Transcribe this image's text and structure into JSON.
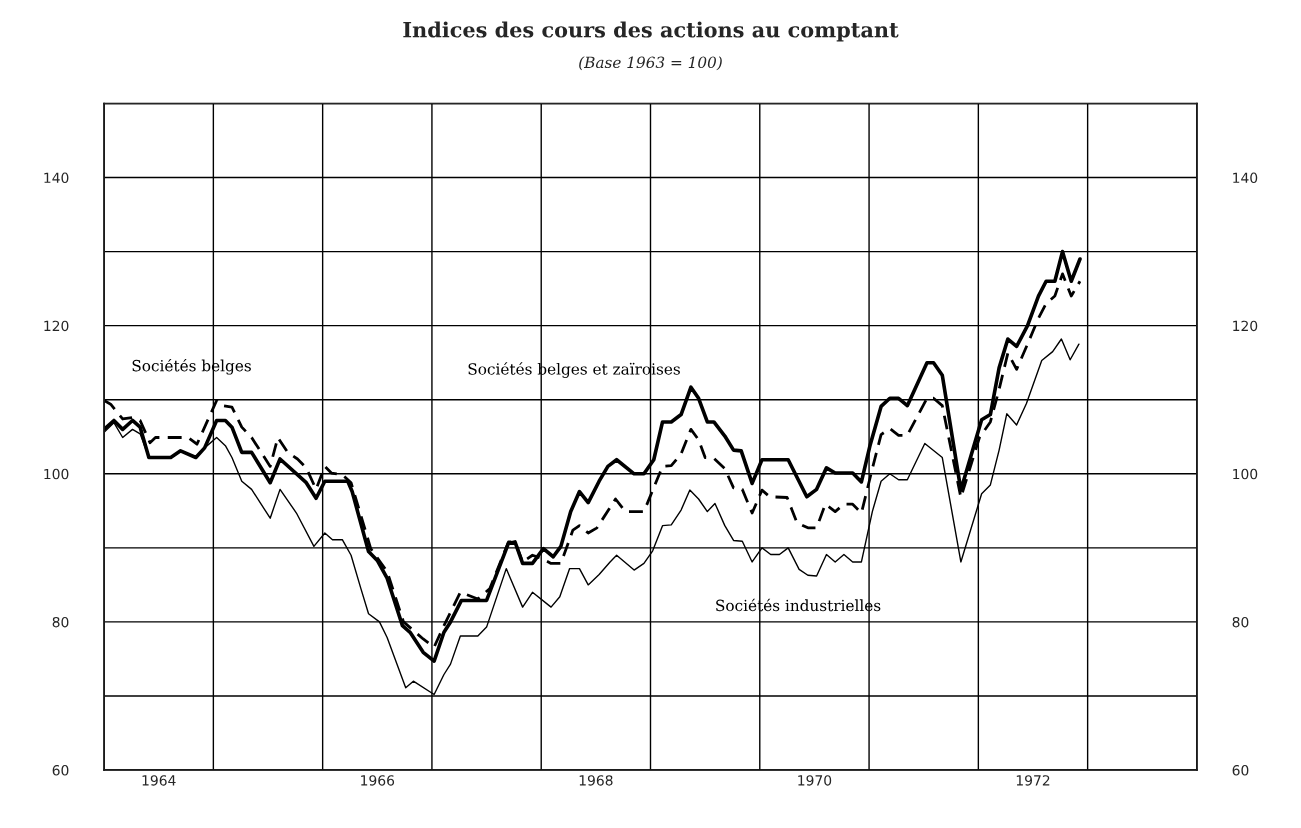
{
  "chart_data": {
    "type": "line",
    "title": "Indices des cours des actions au comptant",
    "subtitle": "(Base 1963 = 100)",
    "xlim": [
      1964,
      1974
    ],
    "xticks": [
      {
        "value": 1964,
        "label": null
      },
      {
        "value": 1964.5,
        "label": "1964"
      },
      {
        "value": 1965,
        "label": null
      },
      {
        "value": 1966,
        "label": null
      },
      {
        "value": 1966.5,
        "label": "1966"
      },
      {
        "value": 1967,
        "label": null
      },
      {
        "value": 1968,
        "label": null
      },
      {
        "value": 1968.5,
        "label": "1968"
      },
      {
        "value": 1969,
        "label": null
      },
      {
        "value": 1970,
        "label": null
      },
      {
        "value": 1970.5,
        "label": "1970"
      },
      {
        "value": 1971,
        "label": null
      },
      {
        "value": 1972,
        "label": null
      },
      {
        "value": 1972.5,
        "label": "1972"
      },
      {
        "value": 1973,
        "label": null
      },
      {
        "value": 1974,
        "label": null
      }
    ],
    "ylim": [
      60,
      150
    ],
    "yticks": [
      60,
      {
        "value": 70,
        "label": null
      },
      80,
      {
        "value": 90,
        "label": null
      },
      100,
      {
        "value": 110,
        "label": null
      },
      120,
      {
        "value": 130,
        "label": null
      },
      140,
      {
        "value": 150,
        "label": null
      }
    ],
    "y2lim": [
      60,
      150
    ],
    "y2ticks": [
      60,
      80,
      100,
      120,
      140
    ],
    "grid": true,
    "legend": false,
    "marker": "none",
    "series": [
      {
        "name": "Sociétés belges",
        "color": "#000000",
        "line_style": "dashed",
        "x": [
          1964.0,
          1964.06,
          1964.17,
          1964.26,
          1964.33,
          1964.42,
          1964.47,
          1964.77,
          1964.85,
          1965.03,
          1965.08,
          1965.17,
          1965.26,
          1965.35,
          1965.52,
          1965.59,
          1965.68,
          1965.77,
          1965.85,
          1965.94,
          1966.02,
          1966.08,
          1966.18,
          1966.26,
          1966.44,
          1966.59,
          1966.74,
          1966.92,
          1967.02,
          1967.11,
          1967.26,
          1967.42,
          1967.53,
          1967.7,
          1967.76,
          1967.83,
          1967.92,
          1968.0,
          1968.09,
          1968.18,
          1968.29,
          1968.35,
          1968.43,
          1968.51,
          1968.68,
          1968.77,
          1968.94,
          1969.11,
          1969.19,
          1969.28,
          1969.37,
          1969.44,
          1969.5,
          1969.58,
          1969.68,
          1969.76,
          1969.84,
          1969.93,
          1970.02,
          1970.09,
          1970.25,
          1970.34,
          1970.44,
          1970.52,
          1970.6,
          1970.69,
          1970.77,
          1970.85,
          1970.93,
          1971.03,
          1971.11,
          1971.19,
          1971.27,
          1971.35,
          1971.53,
          1971.59,
          1971.67,
          1971.84,
          1972.01,
          1972.11,
          1972.19,
          1972.27,
          1972.35,
          1972.45,
          1972.55,
          1972.62,
          1972.7,
          1972.77,
          1972.85,
          1972.93
        ],
        "values": [
          109.9,
          109.4,
          107.4,
          107.6,
          107.2,
          104.2,
          104.9,
          104.9,
          104.0,
          109.9,
          109.2,
          109.0,
          106.3,
          104.9,
          101.0,
          104.9,
          102.9,
          102.0,
          100.8,
          97.9,
          101.0,
          100.1,
          99.9,
          98.8,
          89.9,
          86.8,
          80.0,
          77.7,
          76.6,
          79.5,
          84.0,
          83.1,
          84.5,
          90.8,
          90.8,
          88.1,
          89.0,
          88.6,
          87.9,
          87.9,
          92.4,
          93.0,
          92.0,
          92.7,
          96.6,
          94.9,
          94.9,
          101.0,
          101.1,
          102.7,
          106.0,
          104.6,
          102.2,
          102.1,
          100.7,
          98.1,
          97.9,
          94.7,
          97.8,
          96.9,
          96.8,
          93.4,
          92.7,
          92.7,
          95.9,
          94.9,
          95.9,
          95.9,
          94.7,
          100.7,
          105.3,
          106.1,
          105.2,
          105.2,
          110.2,
          110.2,
          109.2,
          96.8,
          104.9,
          107.0,
          111.4,
          116.3,
          114.1,
          117.5,
          121.0,
          123.0,
          124.0,
          127.0,
          124.0,
          126.0
        ]
      },
      {
        "name": "Sociétés belges et zaïroises",
        "color": "#000000",
        "line_style": "solid",
        "x": [
          1964.0,
          1964.09,
          1964.17,
          1964.26,
          1964.33,
          1964.41,
          1964.61,
          1964.7,
          1964.84,
          1964.92,
          1965.03,
          1965.11,
          1965.17,
          1965.26,
          1965.35,
          1965.52,
          1965.61,
          1965.85,
          1965.94,
          1966.02,
          1966.23,
          1966.27,
          1966.42,
          1966.5,
          1966.59,
          1966.73,
          1966.8,
          1966.92,
          1967.02,
          1967.11,
          1967.17,
          1967.27,
          1967.5,
          1967.7,
          1967.76,
          1967.83,
          1967.92,
          1968.02,
          1968.11,
          1968.18,
          1968.27,
          1968.35,
          1968.43,
          1968.53,
          1968.61,
          1968.69,
          1968.85,
          1968.94,
          1969.03,
          1969.11,
          1969.19,
          1969.28,
          1969.37,
          1969.44,
          1969.52,
          1969.58,
          1969.68,
          1969.76,
          1969.83,
          1969.93,
          1970.02,
          1970.26,
          1970.43,
          1970.52,
          1970.61,
          1970.69,
          1970.85,
          1970.93,
          1971.01,
          1971.11,
          1971.19,
          1971.27,
          1971.35,
          1971.53,
          1971.59,
          1971.67,
          1971.84,
          1972.03,
          1972.11,
          1972.19,
          1972.27,
          1972.35,
          1972.45,
          1972.55,
          1972.62,
          1972.7,
          1972.77,
          1972.85,
          1972.93
        ],
        "values": [
          106.0,
          107.2,
          106.0,
          107.2,
          106.3,
          102.2,
          102.2,
          103.1,
          102.2,
          103.5,
          107.2,
          107.2,
          106.3,
          102.9,
          102.9,
          98.8,
          102.0,
          98.8,
          96.7,
          99.0,
          99.0,
          97.6,
          89.5,
          88.3,
          85.9,
          79.5,
          78.6,
          75.9,
          74.7,
          78.6,
          80.0,
          82.9,
          82.9,
          90.6,
          90.8,
          87.9,
          87.9,
          89.9,
          88.8,
          90.2,
          94.9,
          97.6,
          96.1,
          99.0,
          101.0,
          101.9,
          100.0,
          100.0,
          101.9,
          107.0,
          107.0,
          108.0,
          111.7,
          110.2,
          107.0,
          107.0,
          105.1,
          103.2,
          103.1,
          98.7,
          101.9,
          101.9,
          96.9,
          97.9,
          100.8,
          100.1,
          100.1,
          98.9,
          103.9,
          109.1,
          110.2,
          110.2,
          109.2,
          115.0,
          115.0,
          113.3,
          97.8,
          107.3,
          108.0,
          114.3,
          118.2,
          117.2,
          120.0,
          124.0,
          126.0,
          126.0,
          130.0,
          126.0,
          129.0
        ]
      },
      {
        "name": "Sociétés industrielles",
        "color": "#000000",
        "line_style": "solid",
        "x": [
          1964.0,
          1964.09,
          1964.17,
          1964.26,
          1964.33,
          1964.41,
          1964.61,
          1964.7,
          1964.83,
          1964.92,
          1965.03,
          1965.11,
          1965.17,
          1965.26,
          1965.35,
          1965.52,
          1965.61,
          1965.76,
          1965.92,
          1966.02,
          1966.09,
          1966.18,
          1966.26,
          1966.35,
          1966.42,
          1966.52,
          1966.59,
          1966.76,
          1966.83,
          1967.02,
          1967.11,
          1967.17,
          1967.26,
          1967.42,
          1967.5,
          1967.68,
          1967.83,
          1967.92,
          1968.09,
          1968.17,
          1968.26,
          1968.35,
          1968.43,
          1968.53,
          1968.63,
          1968.69,
          1968.85,
          1968.94,
          1969.02,
          1969.11,
          1969.19,
          1969.28,
          1969.36,
          1969.44,
          1969.52,
          1969.59,
          1969.68,
          1969.76,
          1969.84,
          1969.93,
          1970.02,
          1970.1,
          1970.18,
          1970.26,
          1970.36,
          1970.44,
          1970.52,
          1970.61,
          1970.69,
          1970.77,
          1970.85,
          1970.93,
          1971.03,
          1971.11,
          1971.19,
          1971.27,
          1971.35,
          1971.51,
          1971.67,
          1971.84,
          1972.03,
          1972.11,
          1972.19,
          1972.26,
          1972.35,
          1972.44,
          1972.58,
          1972.68,
          1972.76,
          1972.84,
          1972.92
        ],
        "values": [
          105.6,
          106.9,
          104.9,
          106.0,
          105.4,
          102.2,
          102.2,
          103.1,
          102.2,
          103.5,
          104.9,
          103.8,
          102.2,
          99.0,
          97.9,
          94.0,
          97.9,
          94.7,
          90.2,
          92.0,
          91.1,
          91.1,
          89.0,
          84.5,
          81.1,
          80.0,
          77.9,
          71.1,
          72.0,
          70.2,
          72.9,
          74.3,
          78.1,
          78.1,
          79.3,
          87.2,
          82.0,
          84.0,
          82.0,
          83.4,
          87.2,
          87.2,
          85.0,
          86.4,
          88.1,
          89.0,
          87.0,
          87.9,
          89.6,
          93.0,
          93.1,
          95.1,
          97.8,
          96.6,
          94.9,
          96.0,
          93.0,
          91.0,
          90.9,
          88.1,
          90.0,
          89.1,
          89.1,
          90.0,
          87.1,
          86.3,
          86.2,
          89.1,
          88.1,
          89.1,
          88.1,
          88.1,
          94.9,
          99.0,
          100.0,
          99.2,
          99.2,
          104.1,
          102.2,
          88.1,
          97.3,
          98.5,
          103.2,
          108.1,
          106.6,
          109.5,
          115.3,
          116.5,
          118.2,
          115.4,
          117.5
        ]
      }
    ]
  }
}
